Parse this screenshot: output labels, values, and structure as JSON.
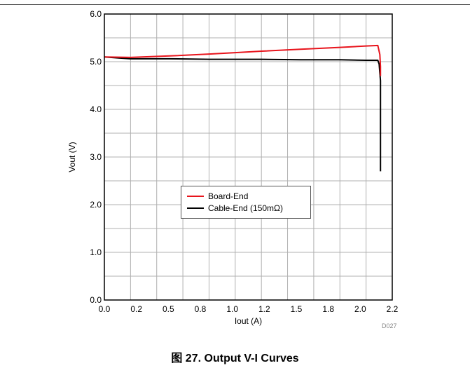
{
  "figure": {
    "caption_number": "图 27.",
    "caption_text": "Output V-I Curves",
    "code": "D027"
  },
  "chart_data": {
    "type": "line",
    "xlabel": "Iout (A)",
    "ylabel": "Vout (V)",
    "xlim": [
      0,
      2.2
    ],
    "ylim": [
      0,
      6
    ],
    "x_ticks": [
      0.0,
      0.2,
      0.5,
      0.8,
      1.0,
      1.2,
      1.5,
      1.8,
      2.0,
      2.2
    ],
    "x_tick_labels": [
      "0.0",
      "0.2",
      "0.5",
      "0.8",
      "1.0",
      "1.2",
      "1.5",
      "1.8",
      "2.0",
      "2.2"
    ],
    "y_ticks": [
      0,
      1,
      2,
      3,
      4,
      5,
      6
    ],
    "y_tick_labels": [
      "0.0",
      "1.0",
      "2.0",
      "3.0",
      "4.0",
      "5.0",
      "6.0"
    ],
    "grid": true,
    "legend_position": "center",
    "series": [
      {
        "name": "Board-End",
        "color": "#e8141c",
        "points": [
          [
            0.0,
            5.1
          ],
          [
            0.2,
            5.09
          ],
          [
            0.5,
            5.12
          ],
          [
            0.8,
            5.16
          ],
          [
            1.0,
            5.19
          ],
          [
            1.2,
            5.22
          ],
          [
            1.5,
            5.26
          ],
          [
            1.8,
            5.3
          ],
          [
            2.0,
            5.33
          ],
          [
            2.09,
            5.34
          ],
          [
            2.105,
            5.15
          ],
          [
            2.11,
            4.9
          ],
          [
            2.11,
            4.7
          ]
        ]
      },
      {
        "name": "Cable-End (150mΩ)",
        "color": "#000000",
        "points": [
          [
            0.0,
            5.1
          ],
          [
            0.1,
            5.08
          ],
          [
            0.2,
            5.06
          ],
          [
            0.5,
            5.06
          ],
          [
            0.8,
            5.05
          ],
          [
            1.0,
            5.05
          ],
          [
            1.2,
            5.05
          ],
          [
            1.5,
            5.04
          ],
          [
            1.8,
            5.04
          ],
          [
            2.0,
            5.03
          ],
          [
            2.09,
            5.03
          ],
          [
            2.1,
            4.95
          ],
          [
            2.11,
            4.6
          ],
          [
            2.11,
            3.5
          ],
          [
            2.11,
            2.7
          ]
        ]
      }
    ]
  }
}
